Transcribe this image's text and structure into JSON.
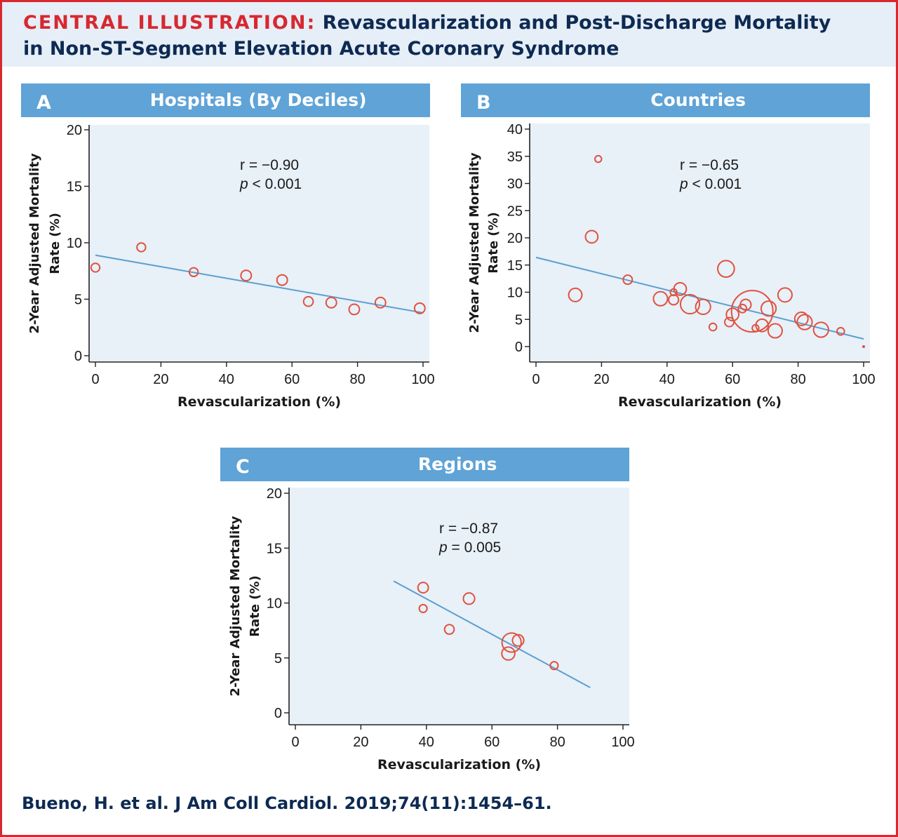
{
  "header": {
    "title_lead": "CENTRAL ILLUSTRATION:",
    "title_rest_line1": "Revascularization and Post-Discharge Mortality",
    "title_line2": "in Non-ST-Segment Elevation Acute Coronary Syndrome"
  },
  "citation": "Bueno, H. et al. J Am Coll Cardiol. 2019;74(11):1454–61.",
  "colors": {
    "banner": "#5fa3d7",
    "plot_bg": "#e8f0f8",
    "marker": "#e0523f",
    "fit_line": "#5a9fcf",
    "accent_red": "#d7282f",
    "navy": "#0d2a52"
  },
  "chart_data": [
    {
      "panel": "A",
      "title": "Hospitals (By Deciles)",
      "type": "scatter",
      "xlabel": "Revascularization (%)",
      "ylabel_line1": "2-Year Adjusted Mortality",
      "ylabel_line2": "Rate (%)",
      "xlim": [
        0,
        100
      ],
      "ylim": [
        0,
        20
      ],
      "xticks": [
        0,
        20,
        40,
        60,
        80,
        100
      ],
      "yticks": [
        0,
        5,
        10,
        15,
        20
      ],
      "stat_r": "r = −0.90",
      "stat_p_symbol": "p",
      "stat_p_rest": " < 0.001",
      "points": [
        {
          "x": 0,
          "y": 7.8,
          "size": 1
        },
        {
          "x": 14,
          "y": 9.6,
          "size": 1
        },
        {
          "x": 30,
          "y": 7.4,
          "size": 1
        },
        {
          "x": 46,
          "y": 7.1,
          "size": 1.2
        },
        {
          "x": 57,
          "y": 6.7,
          "size": 1.2
        },
        {
          "x": 65,
          "y": 4.8,
          "size": 1.1
        },
        {
          "x": 72,
          "y": 4.7,
          "size": 1.2
        },
        {
          "x": 79,
          "y": 4.1,
          "size": 1.2
        },
        {
          "x": 87,
          "y": 4.7,
          "size": 1.2
        },
        {
          "x": 99,
          "y": 4.2,
          "size": 1.2
        }
      ],
      "fit": {
        "x": [
          0,
          100
        ],
        "y": [
          8.9,
          3.8
        ]
      }
    },
    {
      "panel": "B",
      "title": "Countries",
      "type": "scatter",
      "xlabel": "Revascularization (%)",
      "ylabel_line1": "2-Year Adjusted Mortality",
      "ylabel_line2": "Rate (%)",
      "xlim": [
        0,
        100
      ],
      "ylim": [
        0,
        40
      ],
      "xticks": [
        0,
        20,
        40,
        60,
        80,
        100
      ],
      "yticks": [
        0,
        5,
        10,
        15,
        20,
        25,
        30,
        35,
        40
      ],
      "stat_r": "r = −0.65",
      "stat_p_symbol": "p",
      "stat_p_rest": " < 0.001",
      "points": [
        {
          "x": 19,
          "y": 34.5,
          "size": 0.8
        },
        {
          "x": 17,
          "y": 20.2,
          "size": 1.5
        },
        {
          "x": 12,
          "y": 9.5,
          "size": 1.6
        },
        {
          "x": 28,
          "y": 12.3,
          "size": 1.1
        },
        {
          "x": 38,
          "y": 8.8,
          "size": 1.7
        },
        {
          "x": 42,
          "y": 8.6,
          "size": 1.2
        },
        {
          "x": 42,
          "y": 10.0,
          "size": 0.8
        },
        {
          "x": 44,
          "y": 10.6,
          "size": 1.5
        },
        {
          "x": 47,
          "y": 7.8,
          "size": 2.3
        },
        {
          "x": 51,
          "y": 7.3,
          "size": 1.8
        },
        {
          "x": 54,
          "y": 3.6,
          "size": 0.9
        },
        {
          "x": 58,
          "y": 14.3,
          "size": 2.0
        },
        {
          "x": 59,
          "y": 4.5,
          "size": 1.1
        },
        {
          "x": 60,
          "y": 5.9,
          "size": 1.5
        },
        {
          "x": 63,
          "y": 7.0,
          "size": 1.0
        },
        {
          "x": 64,
          "y": 7.7,
          "size": 1.3
        },
        {
          "x": 66,
          "y": 6.5,
          "size": 5.0
        },
        {
          "x": 67,
          "y": 3.4,
          "size": 0.8
        },
        {
          "x": 69,
          "y": 3.9,
          "size": 1.5
        },
        {
          "x": 71,
          "y": 7.0,
          "size": 1.8
        },
        {
          "x": 73,
          "y": 2.9,
          "size": 1.7
        },
        {
          "x": 76,
          "y": 9.5,
          "size": 1.7
        },
        {
          "x": 81,
          "y": 5.1,
          "size": 1.6
        },
        {
          "x": 82,
          "y": 4.5,
          "size": 1.8
        },
        {
          "x": 87,
          "y": 3.1,
          "size": 1.8
        },
        {
          "x": 93,
          "y": 2.8,
          "size": 0.9
        },
        {
          "x": 100,
          "y": 0.0,
          "size": 0.15
        }
      ],
      "fit": {
        "x": [
          0,
          100
        ],
        "y": [
          16.4,
          1.4
        ]
      }
    },
    {
      "panel": "C",
      "title": "Regions",
      "type": "scatter",
      "xlabel": "Revascularization (%)",
      "ylabel_line1": "2-Year Adjusted Mortality",
      "ylabel_line2": "Rate (%)",
      "xlim": [
        0,
        100
      ],
      "ylim": [
        0,
        20
      ],
      "xticks": [
        0,
        20,
        40,
        60,
        80,
        100
      ],
      "yticks": [
        0,
        5,
        10,
        15,
        20
      ],
      "stat_r": "r = −0.87",
      "stat_p_symbol": "p",
      "stat_p_rest": " = 0.005",
      "points": [
        {
          "x": 39,
          "y": 11.4,
          "size": 1.2
        },
        {
          "x": 39,
          "y": 9.5,
          "size": 0.9
        },
        {
          "x": 47,
          "y": 7.6,
          "size": 1.1
        },
        {
          "x": 53,
          "y": 10.4,
          "size": 1.3
        },
        {
          "x": 65,
          "y": 5.4,
          "size": 1.5
        },
        {
          "x": 66,
          "y": 6.4,
          "size": 2.2
        },
        {
          "x": 68,
          "y": 6.6,
          "size": 1.3
        },
        {
          "x": 79,
          "y": 4.3,
          "size": 0.9
        }
      ],
      "fit": {
        "x": [
          30,
          90
        ],
        "y": [
          12.0,
          2.3
        ]
      }
    }
  ]
}
